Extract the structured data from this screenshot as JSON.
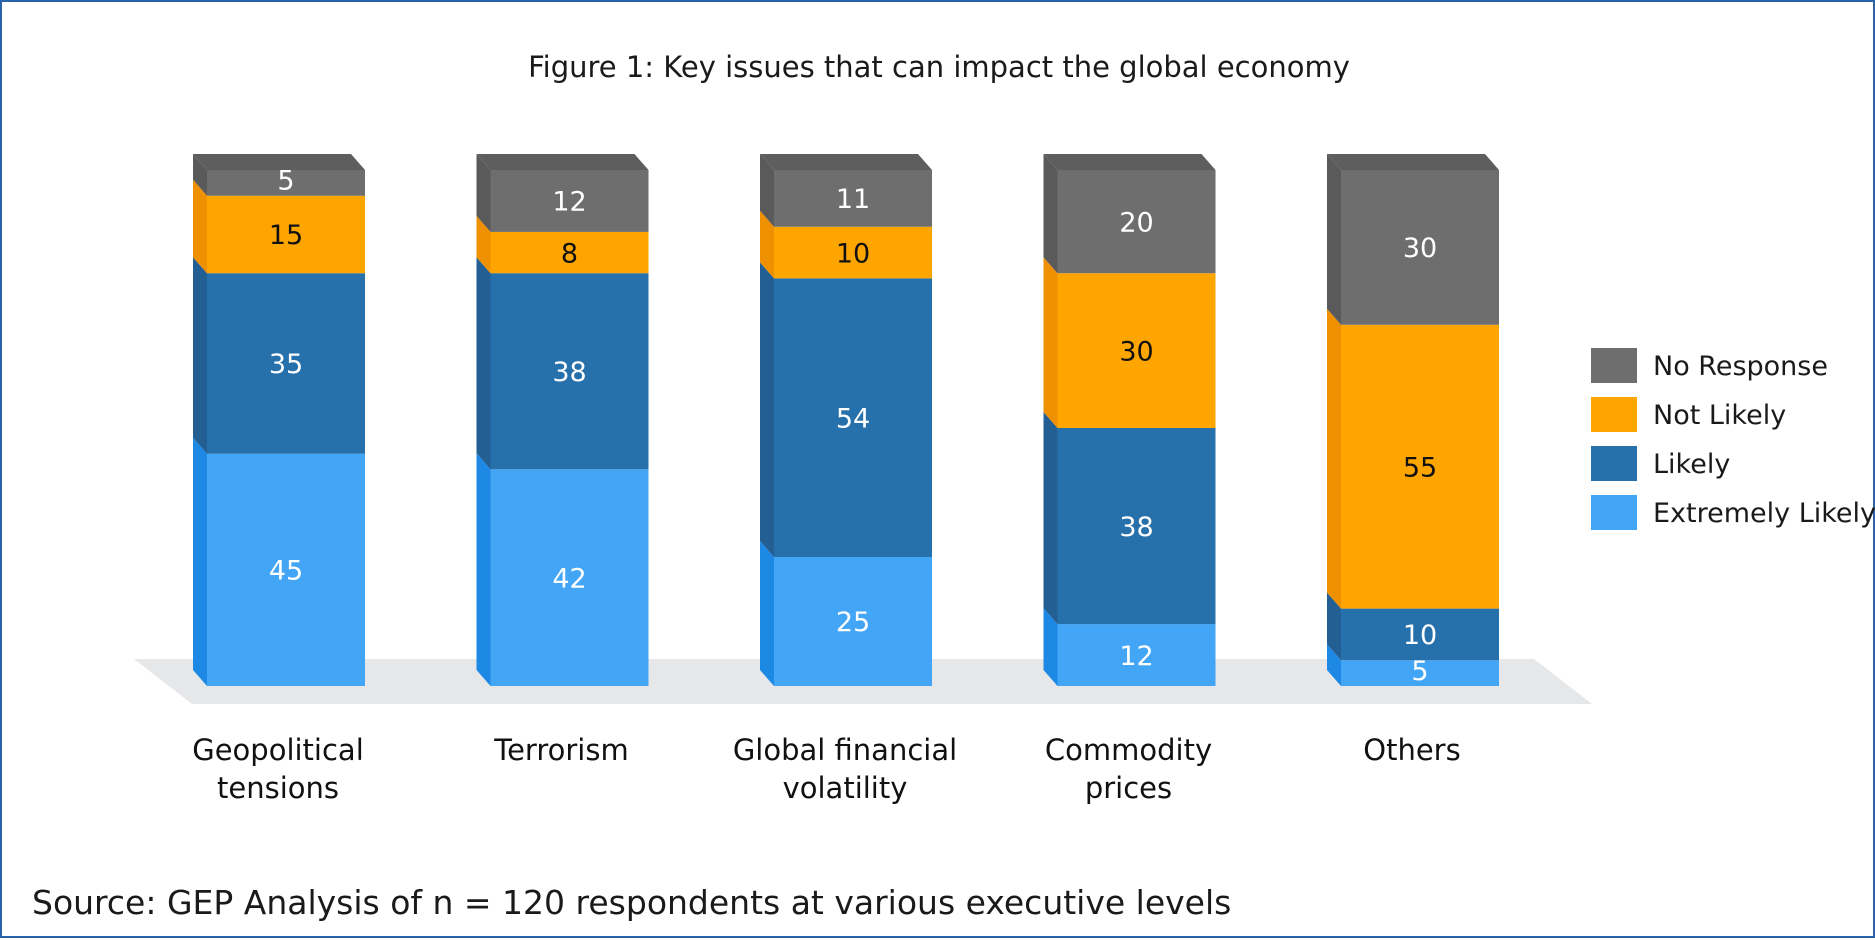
{
  "chart_data": {
    "type": "bar",
    "stacked": true,
    "title": "Figure 1: Key issues that can impact the global economy",
    "categories": [
      [
        "Geopolitical",
        "tensions"
      ],
      [
        "Terrorism"
      ],
      [
        "Global financial",
        "volatility"
      ],
      [
        "Commodity",
        "prices"
      ],
      [
        "Others"
      ]
    ],
    "series": [
      {
        "name": "Extremely Likely",
        "color": "#42a5f5",
        "side_color": "#1e88e5",
        "values": [
          45,
          42,
          25,
          12,
          5
        ]
      },
      {
        "name": "Likely",
        "color": "#2670ab",
        "side_color": "#235f93",
        "values": [
          35,
          38,
          54,
          38,
          10
        ]
      },
      {
        "name": "Not Likely",
        "color": "#ffa500",
        "side_color": "#ef9000",
        "values": [
          15,
          8,
          10,
          30,
          55
        ]
      },
      {
        "name": "No Response",
        "color": "#6e6e6e",
        "side_color": "#5a5a5a",
        "values": [
          5,
          12,
          11,
          20,
          30
        ]
      }
    ],
    "legend_order": [
      "No Response",
      "Not Likely",
      "Likely",
      "Extremely Likely"
    ],
    "legend_position": "right",
    "ylim": [
      0,
      100
    ],
    "grid": false,
    "source": "Source: GEP Analysis of n = 120 respondents at various executive levels"
  }
}
